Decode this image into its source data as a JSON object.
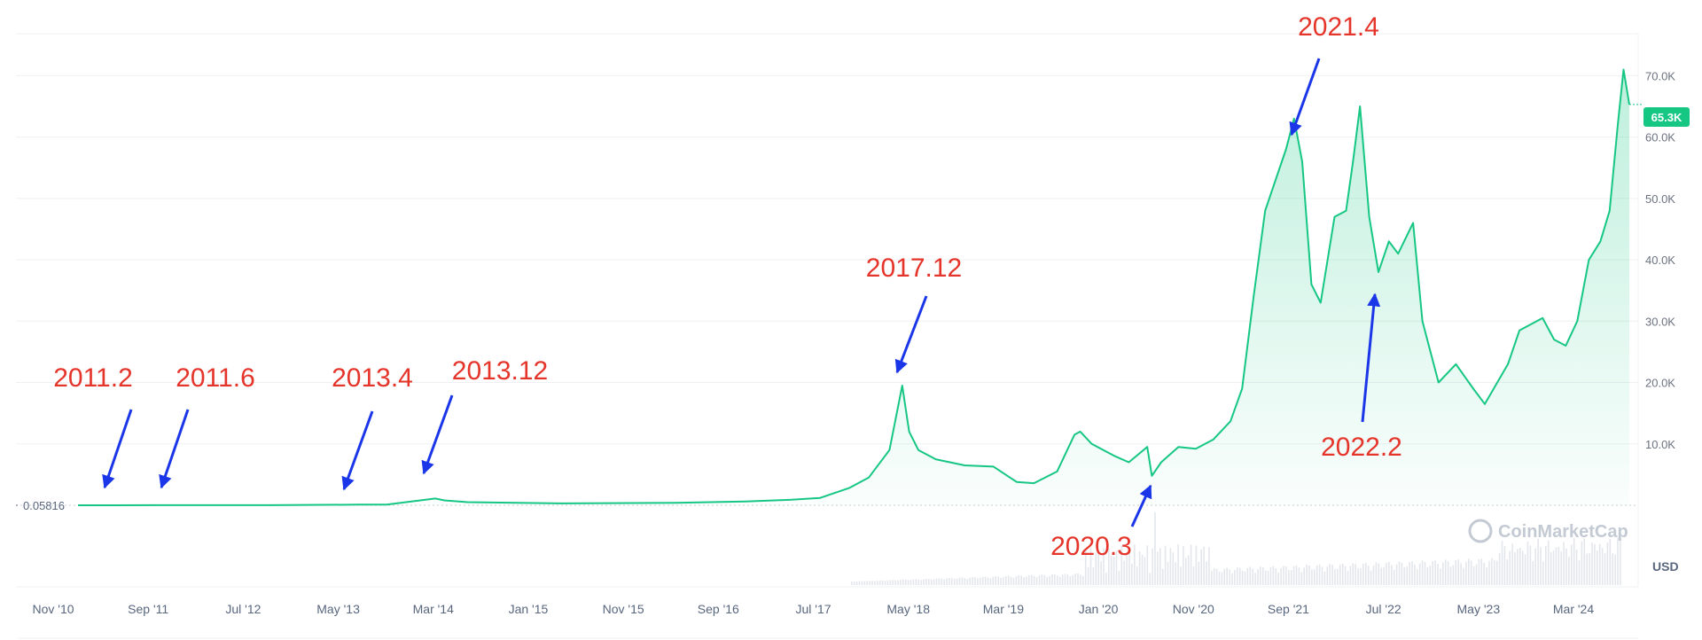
{
  "chart_data": {
    "type": "area",
    "x_ticks": [
      "Nov '10",
      "Sep '11",
      "Jul '12",
      "May '13",
      "Mar '14",
      "Jan '15",
      "Nov '15",
      "Sep '16",
      "Jul '17",
      "May '18",
      "Mar '19",
      "Jan '20",
      "Nov '20",
      "Sep '21",
      "Jul '22",
      "May '23",
      "Mar '24"
    ],
    "y_ticks": [
      "10.0K",
      "20.0K",
      "30.0K",
      "40.0K",
      "50.0K",
      "60.0K",
      "70.0K"
    ],
    "y_tick_values": [
      10000,
      20000,
      30000,
      40000,
      50000,
      60000,
      70000
    ],
    "ylim": [
      0,
      78000
    ],
    "xlim": [
      2010.83,
      2024.25
    ],
    "currency": "USD",
    "current_price_label": "65.3K",
    "current_price": 65300,
    "baseline_label": "0.05816",
    "watermark": "CoinMarketCap",
    "line_color": "#16c784",
    "area_color": "#16c784",
    "series": [
      {
        "x": [
          2010.83,
          2011.5,
          2012.5,
          2013.25,
          2013.5,
          2013.92,
          2014.0,
          2014.2,
          2015.0,
          2016.0,
          2016.6,
          2017.0,
          2017.25,
          2017.5,
          2017.67,
          2017.85,
          2017.96,
          2018.02,
          2018.1,
          2018.25,
          2018.5,
          2018.75,
          2018.95,
          2019.1,
          2019.3,
          2019.45,
          2019.5,
          2019.6,
          2019.8,
          2019.92,
          2020.08,
          2020.12,
          2020.2,
          2020.35,
          2020.5,
          2020.65,
          2020.8,
          2020.9,
          2021.0,
          2021.1,
          2021.28,
          2021.35,
          2021.42,
          2021.5,
          2021.58,
          2021.7,
          2021.8,
          2021.86,
          2021.92,
          2022.0,
          2022.08,
          2022.17,
          2022.25,
          2022.38,
          2022.46,
          2022.6,
          2022.75,
          2022.9,
          2023.0,
          2023.2,
          2023.3,
          2023.5,
          2023.6,
          2023.7,
          2023.8,
          2023.9,
          2024.0,
          2024.08,
          2024.15,
          2024.2,
          2024.25
        ],
        "y": [
          0.3,
          20,
          10,
          100,
          120,
          1100,
          800,
          500,
          300,
          400,
          600,
          900,
          1200,
          2800,
          4500,
          9000,
          19500,
          12000,
          9000,
          7500,
          6500,
          6300,
          3800,
          3600,
          5500,
          11500,
          12000,
          10000,
          8000,
          7000,
          9500,
          4800,
          7000,
          9500,
          9200,
          10700,
          13700,
          19000,
          34000,
          48000,
          58000,
          63000,
          56000,
          36000,
          33000,
          47000,
          48000,
          56000,
          65000,
          47000,
          38000,
          43000,
          41000,
          46000,
          30000,
          20000,
          23000,
          19000,
          16500,
          23000,
          28500,
          30500,
          27000,
          26000,
          30000,
          40000,
          43000,
          48000,
          62000,
          71000,
          65300
        ]
      }
    ],
    "annotations": [
      {
        "label": "2011.2",
        "x": 2011.13,
        "y": 0.9
      },
      {
        "label": "2011.6",
        "x": 2011.45,
        "y": 15
      },
      {
        "label": "2013.4",
        "x": 2013.25,
        "y": 100
      },
      {
        "label": "2013.12",
        "x": 2013.92,
        "y": 1100
      },
      {
        "label": "2017.12",
        "x": 2017.96,
        "y": 19500
      },
      {
        "label": "2020.3",
        "x": 2020.12,
        "y": 4800
      },
      {
        "label": "2021.4",
        "x": 2021.28,
        "y": 63000
      },
      {
        "label": "2022.2",
        "x": 2022.08,
        "y": 38000
      }
    ],
    "arrow_color": "#1a36e8",
    "annotation_color": "#e5342a"
  }
}
